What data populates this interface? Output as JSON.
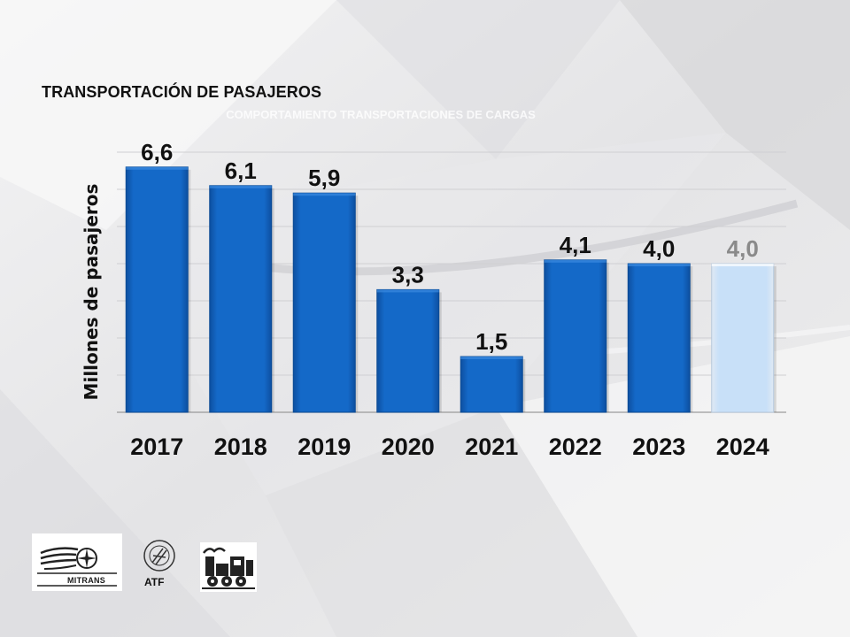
{
  "slide": {
    "title": "TRANSPORTACIÓN DE PASAJEROS",
    "ghost_subtitle": "COMPORTAMIENTO TRANSPORTACIONES DE CARGAS"
  },
  "logos": {
    "mitrans": "MITRANS",
    "atf": "ATF",
    "atf_ring_text": "ASOCIACIÓN DEL TRANSPORTE FERROVIARIO"
  },
  "colors": {
    "bar_actual": "#1469c8",
    "bar_estimate": "#c8e0f8",
    "label_actual": "#111111",
    "label_estimate": "#8a8a8a"
  },
  "chart_data": {
    "type": "bar",
    "title": "",
    "ylabel": "Millones de pasajeros",
    "xlabel": "",
    "categories": [
      "2017",
      "2018",
      "2019",
      "2020",
      "2021",
      "2022",
      "2023",
      "2024"
    ],
    "values": [
      6.6,
      6.1,
      5.9,
      3.3,
      1.5,
      4.1,
      4.0,
      4.0
    ],
    "data_labels": [
      "6,6",
      "6,1",
      "5,9",
      "3,3",
      "1,5",
      "4,1",
      "4,0",
      "4,0"
    ],
    "highlight": [
      "actual",
      "actual",
      "actual",
      "actual",
      "actual",
      "actual",
      "actual",
      "estimate"
    ],
    "ylim": [
      0,
      7
    ],
    "grid": true,
    "legend": "none"
  }
}
